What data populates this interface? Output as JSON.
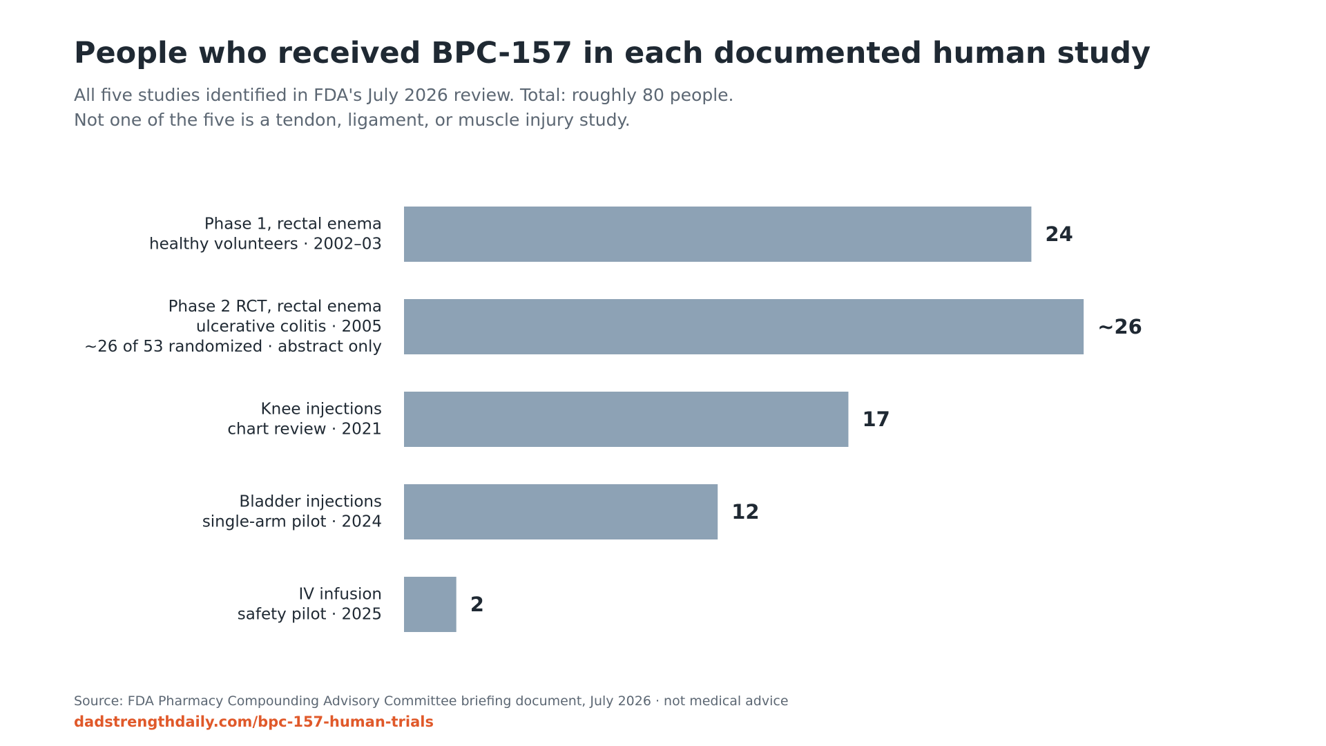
{
  "header": {
    "title": "People who received BPC-157 in each documented human study",
    "subtitle_lines": [
      "All five studies identified in FDA's July 2026 review. Total: roughly 80 people.",
      "Not one of the five is a tendon, ligament, or muscle injury study."
    ]
  },
  "chart_data": {
    "type": "bar",
    "orientation": "horizontal",
    "title": "People who received BPC-157 in each documented human study",
    "categories": [
      [
        "Phase 1, rectal enema",
        "healthy volunteers · 2002–03"
      ],
      [
        "Phase 2 RCT, rectal enema",
        "ulcerative colitis · 2005",
        "~26 of 53 randomized · abstract only"
      ],
      [
        "Knee injections",
        "chart review · 2021"
      ],
      [
        "Bladder injections",
        "single-arm pilot · 2024"
      ],
      [
        "IV infusion",
        "safety pilot · 2025"
      ]
    ],
    "values": [
      24,
      26,
      17,
      12,
      2
    ],
    "value_labels": [
      "24",
      "~26",
      "17",
      "12",
      "2"
    ],
    "xlim": [
      0,
      30
    ],
    "grid": false,
    "legend": "none",
    "bar_color": "#8da2b5"
  },
  "footer": {
    "source": "Source: FDA Pharmacy Compounding Advisory Committee briefing document, July 2026 · not medical advice",
    "link": "dadstrengthdaily.com/bpc-157-human-trials"
  },
  "colors": {
    "title": "#1f2933",
    "subtitle": "#5c6773",
    "accent": "#e0592a",
    "bar": "#8da2b5"
  }
}
